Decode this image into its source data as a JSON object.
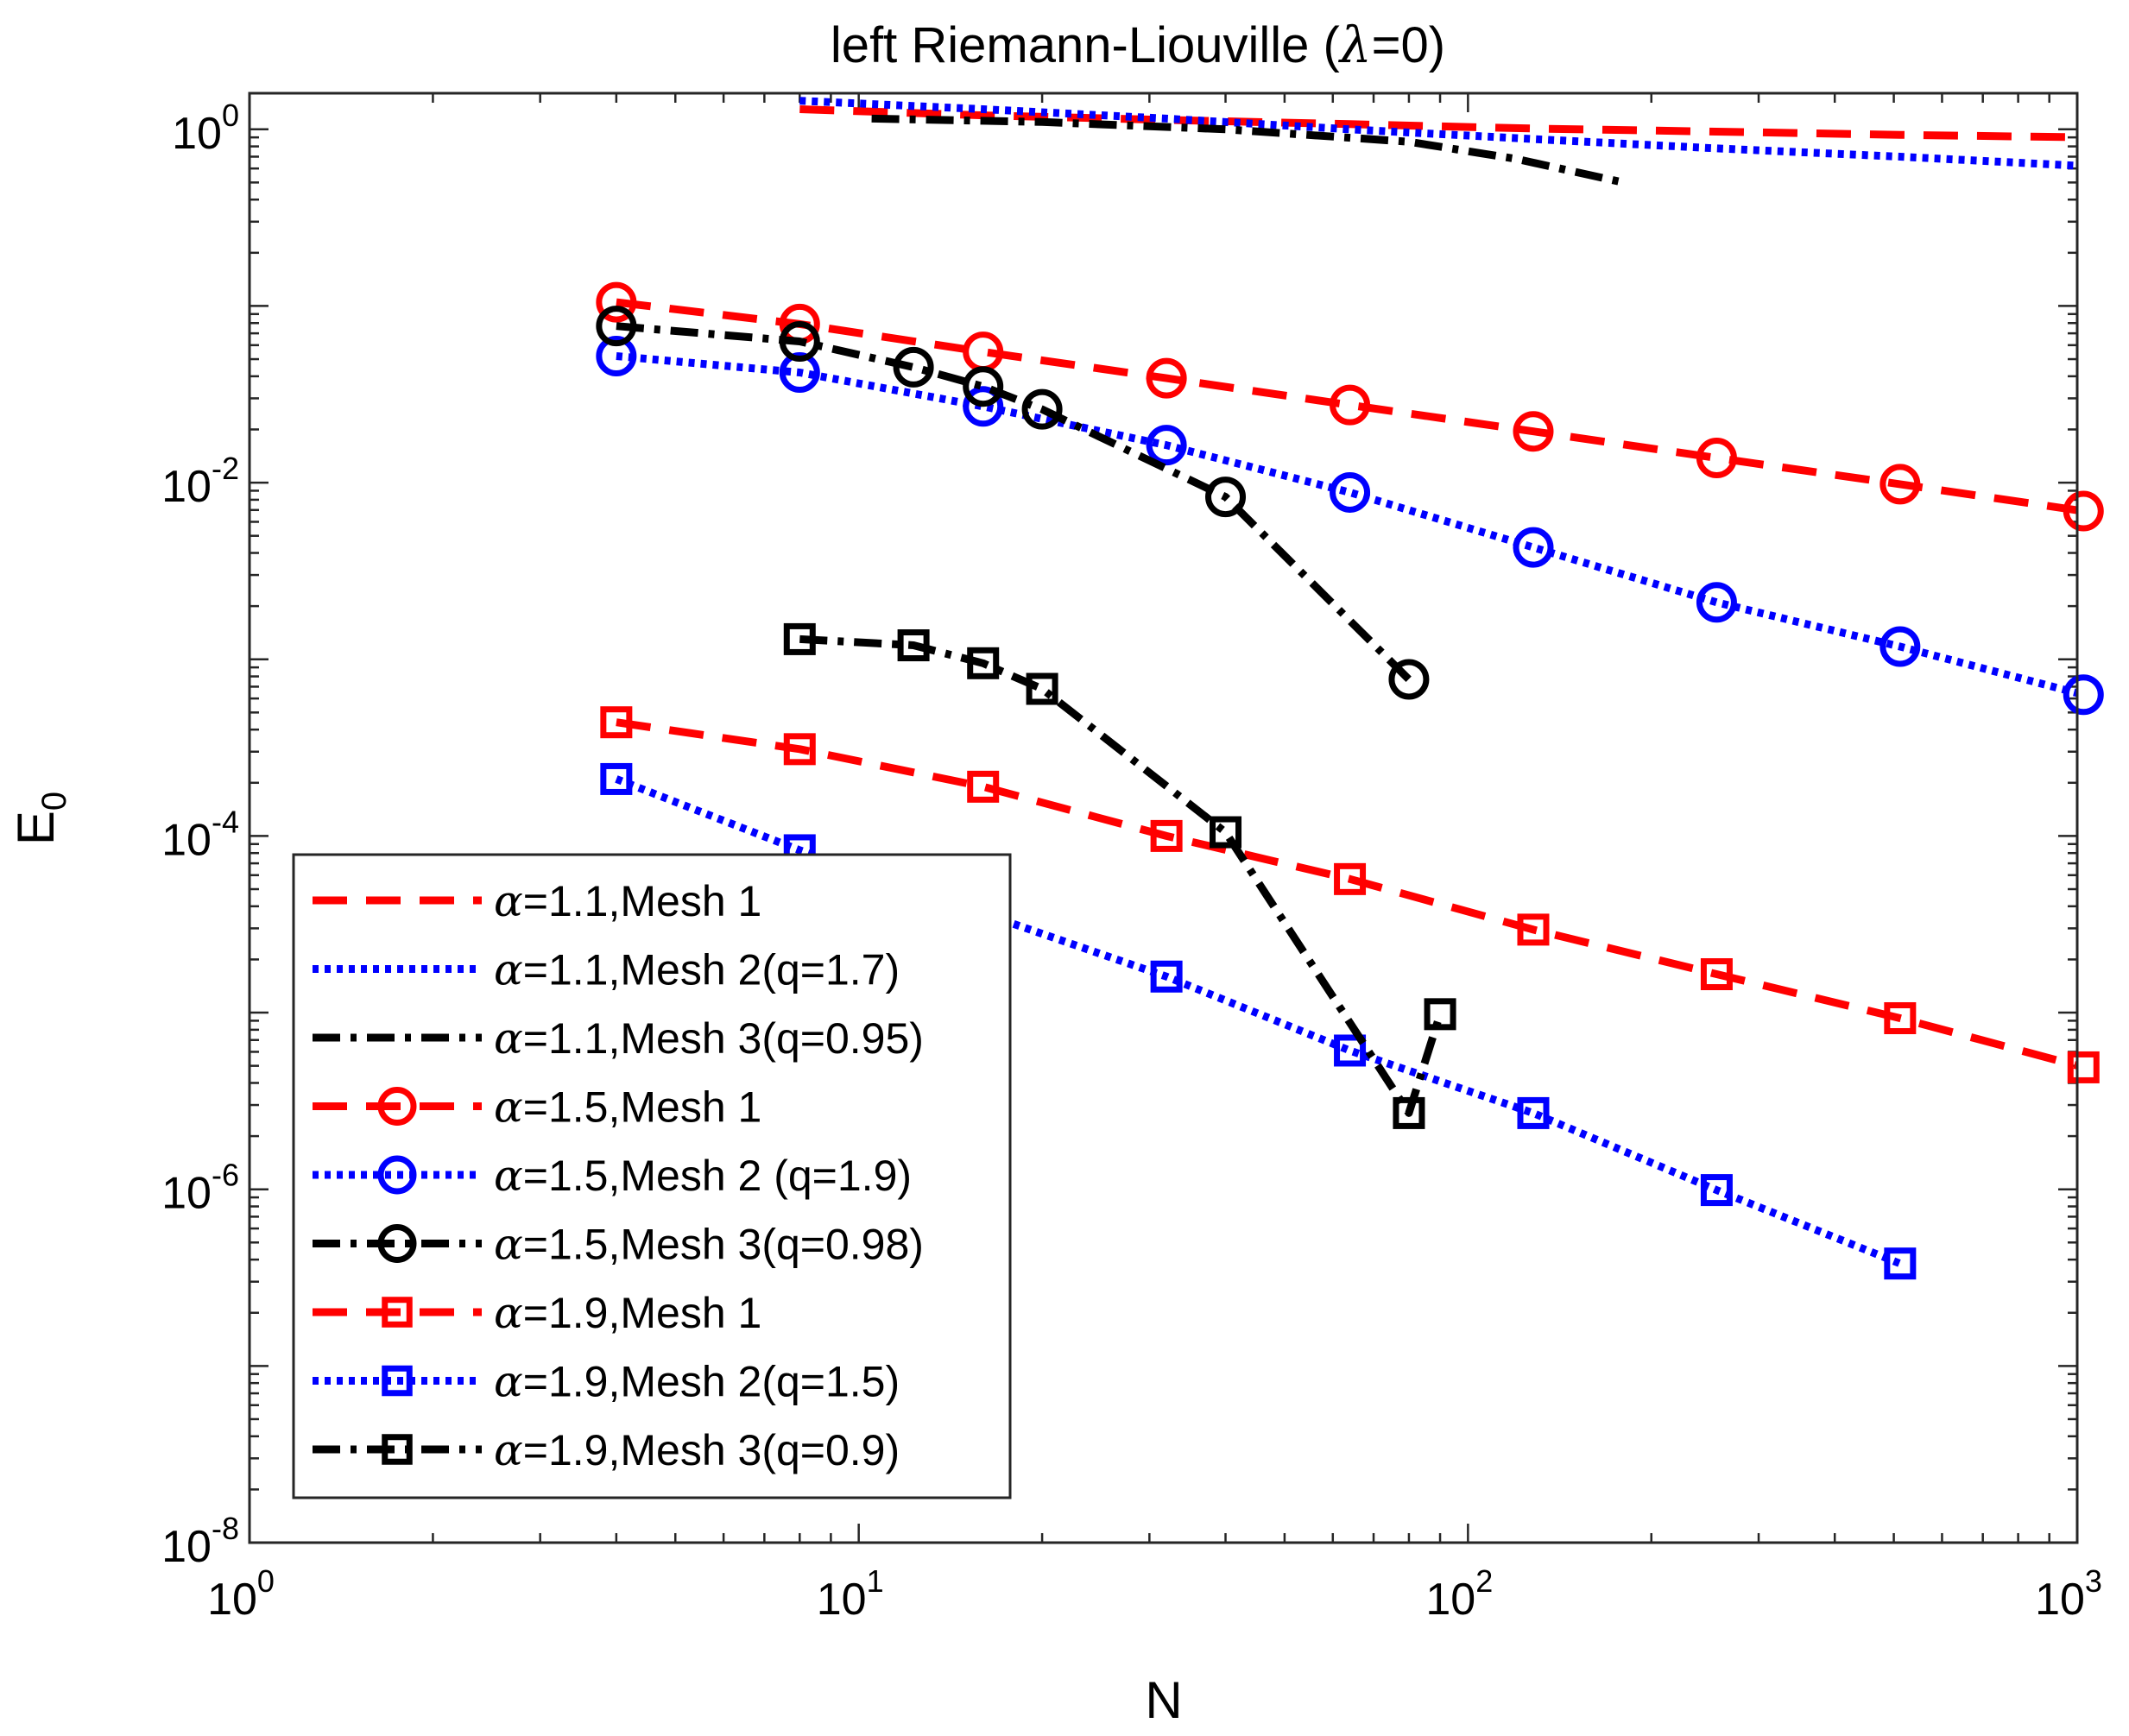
{
  "chart_data": {
    "type": "line",
    "title": "left Riemann-Liouville (λ=0)",
    "title_prefix": "left Riemann-Liouville (",
    "title_symbol": "λ",
    "title_suffix": "=0)",
    "xlabel": "N",
    "ylabel": "E",
    "ylabel_sub": "0",
    "xscale": "log",
    "yscale": "log",
    "xlim": [
      1,
      1000
    ],
    "ylim": [
      1e-08,
      1.6
    ],
    "x_ticks": [
      {
        "value": 1,
        "base": "10",
        "exp": "0"
      },
      {
        "value": 10,
        "base": "10",
        "exp": "1"
      },
      {
        "value": 100,
        "base": "10",
        "exp": "2"
      },
      {
        "value": 1000,
        "base": "10",
        "exp": "3"
      }
    ],
    "y_ticks": [
      {
        "value": 1,
        "base": "10",
        "exp": "0"
      },
      {
        "value": 0.01,
        "base": "10",
        "exp": "-2"
      },
      {
        "value": 0.0001,
        "base": "10",
        "exp": "-4"
      },
      {
        "value": 1e-06,
        "base": "10",
        "exp": "-6"
      },
      {
        "value": 1e-08,
        "base": "10",
        "exp": "-8"
      }
    ],
    "legend_position": "bottom-left",
    "series": [
      {
        "name": "α=1.1,Mesh 1",
        "alpha": "1.1",
        "label": "=1.1,Mesh 1",
        "color": "#ff0000",
        "dash": "dashed",
        "marker": "none",
        "x": [
          8,
          16,
          32,
          64,
          128,
          256,
          512,
          1024
        ],
        "y": [
          1.3,
          1.2,
          1.13,
          1.07,
          1.01,
          0.97,
          0.93,
          0.9
        ]
      },
      {
        "name": "α=1.1,Mesh 2(q=1.7)",
        "alpha": "1.1",
        "label": "=1.1,Mesh 2(q=1.7)",
        "color": "#0000ff",
        "dash": "dotted",
        "marker": "none",
        "x": [
          8,
          16,
          32,
          64,
          128,
          256,
          512,
          1024
        ],
        "y": [
          1.45,
          1.3,
          1.15,
          1.0,
          0.88,
          0.78,
          0.7,
          0.62
        ]
      },
      {
        "name": "α=1.1,Mesh 3(q=0.95)",
        "alpha": "1.1",
        "label": "=1.1,Mesh 3(q=0.95)",
        "color": "#000000",
        "dash": "dashdot",
        "marker": "none",
        "x": [
          10.5,
          20,
          40,
          80,
          120,
          180
        ],
        "y": [
          1.15,
          1.1,
          1.0,
          0.85,
          0.68,
          0.5
        ]
      },
      {
        "name": "α=1.5,Mesh 1",
        "alpha": "1.5",
        "label": "=1.5,Mesh 1",
        "color": "#ff0000",
        "dash": "dashed",
        "marker": "circle",
        "x": [
          4,
          8,
          16,
          32,
          64,
          128,
          256,
          512,
          1024
        ],
        "y": [
          0.105,
          0.079,
          0.055,
          0.039,
          0.0275,
          0.0195,
          0.0138,
          0.0098,
          0.0069
        ]
      },
      {
        "name": "α=1.5,Mesh 2 (q=1.9)",
        "alpha": "1.5",
        "label": "=1.5,Mesh 2 (q=1.9)",
        "color": "#0000ff",
        "dash": "dotted",
        "marker": "circle",
        "x": [
          4,
          8,
          16,
          32,
          64,
          128,
          256,
          512,
          1024
        ],
        "y": [
          0.052,
          0.042,
          0.027,
          0.0163,
          0.0088,
          0.0043,
          0.0021,
          0.00118,
          0.00063
        ]
      },
      {
        "name": "α=1.5,Mesh 3(q=0.98)",
        "alpha": "1.5",
        "label": "=1.5,Mesh 3(q=0.98)",
        "color": "#000000",
        "dash": "dashdot",
        "marker": "circle",
        "x": [
          4,
          8,
          12.3,
          16,
          20,
          40,
          80
        ],
        "y": [
          0.077,
          0.063,
          0.045,
          0.035,
          0.026,
          0.0083,
          0.00077
        ]
      },
      {
        "name": "α=1.9,Mesh 1",
        "alpha": "1.9",
        "label": "=1.9,Mesh 1",
        "color": "#ff0000",
        "dash": "dashed",
        "marker": "square",
        "x": [
          4,
          8,
          16,
          32,
          64,
          128,
          256,
          512,
          1024
        ],
        "y": [
          0.00044,
          0.00031,
          0.00019,
          0.0001,
          5.7e-05,
          2.95e-05,
          1.65e-05,
          9.3e-06,
          4.9e-06
        ]
      },
      {
        "name": "α=1.9,Mesh 2(q=1.5)",
        "alpha": "1.9",
        "label": "=1.9,Mesh 2(q=1.5)",
        "color": "#0000ff",
        "dash": "dotted",
        "marker": "square",
        "x": [
          4,
          8,
          32,
          64,
          128,
          256,
          512
        ],
        "y": [
          0.00021,
          8.3e-05,
          1.6e-05,
          6.1e-06,
          2.7e-06,
          9.9e-07,
          3.8e-07
        ]
      },
      {
        "name": "α=1.9,Mesh 3(q=0.9)",
        "alpha": "1.9",
        "label": "=1.9,Mesh 3(q=0.9)",
        "color": "#000000",
        "dash": "dashdot",
        "marker": "square",
        "x": [
          8,
          12.3,
          16,
          20,
          40,
          80,
          90
        ],
        "y": [
          0.0013,
          0.0012,
          0.00095,
          0.00068,
          0.000105,
          2.7e-06,
          9.8e-06
        ]
      }
    ]
  }
}
